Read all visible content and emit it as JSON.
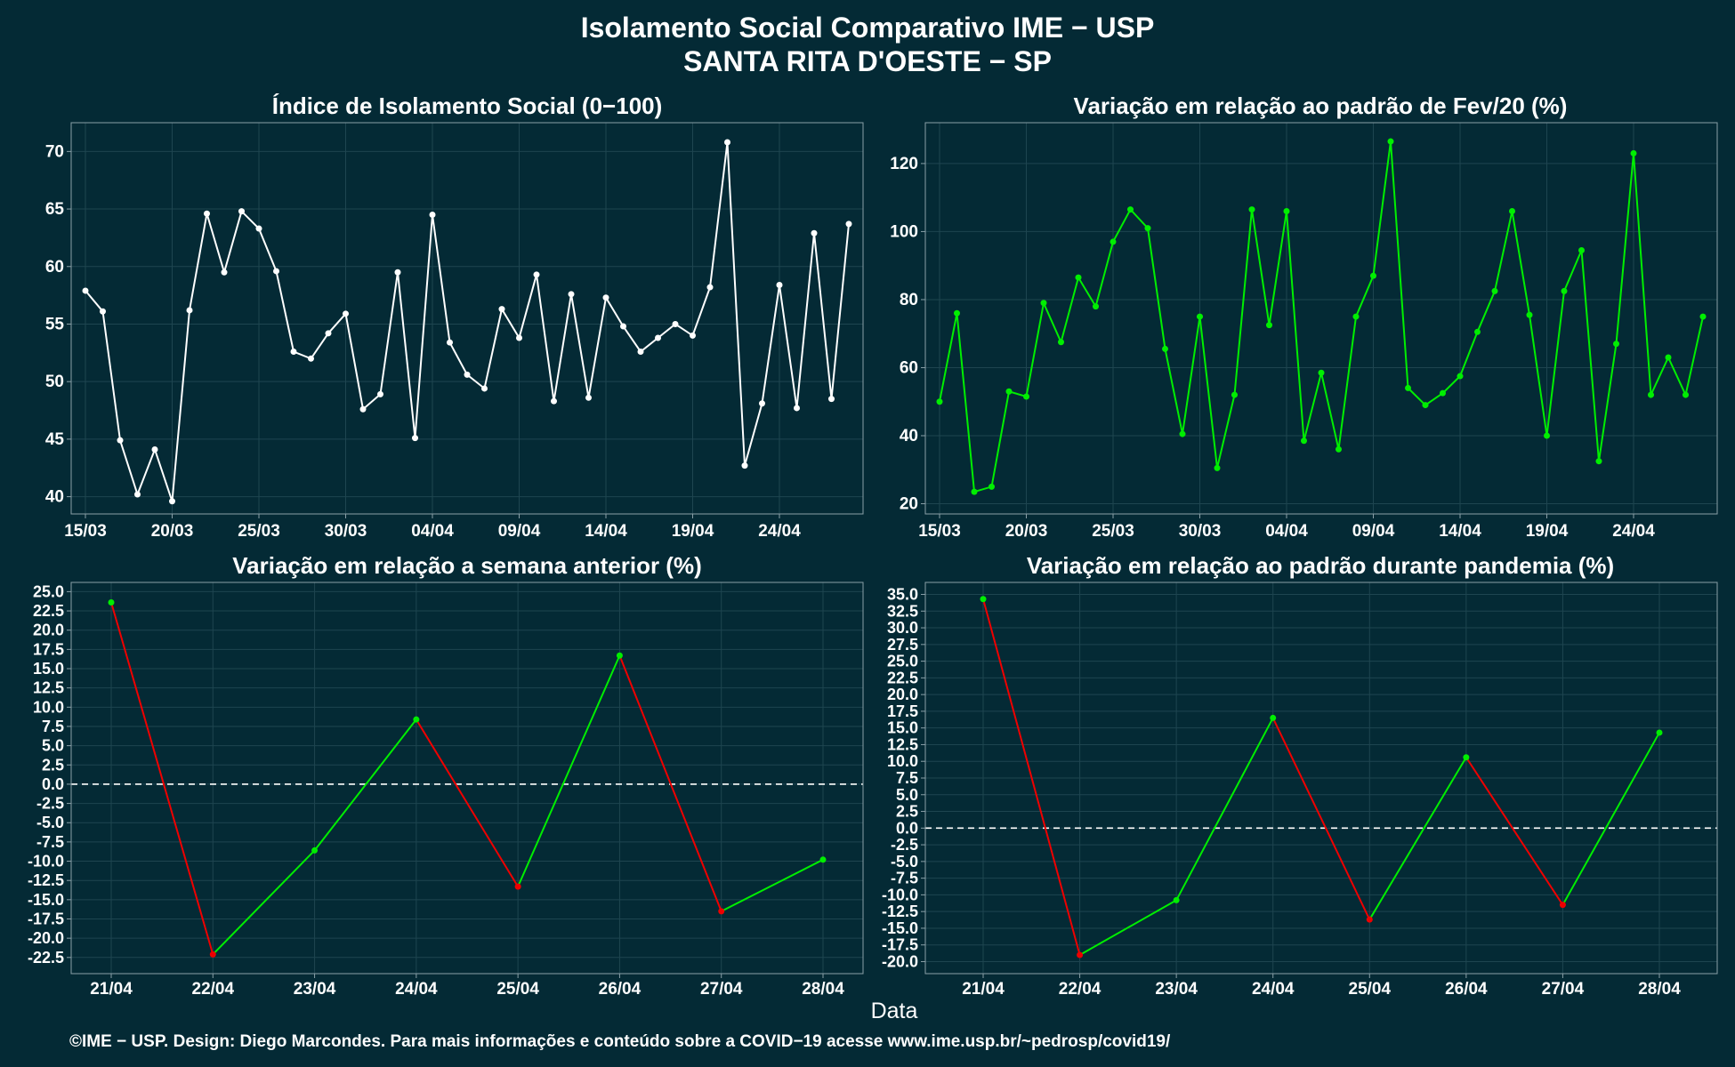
{
  "figure": {
    "title_line1": "Isolamento Social Comparativo IME − USP",
    "title_line2": "SANTA RITA D'OESTE − SP",
    "xlabel": "Data",
    "footer": "©IME − USP. Design: Diego Marcondes. Para mais informações e conteúdo sobre a COVID−19 acesse www.ime.usp.br/~pedrosp/covid19/",
    "colors": {
      "background": "#042a35",
      "panel": "#042a35",
      "white_line": "#ffffff",
      "green": "#00ee00",
      "red": "#ee0000",
      "grid": "#1e4550",
      "frame": "#8aa0a8"
    }
  },
  "chart_data": [
    {
      "type": "line",
      "title": "Índice de Isolamento Social (0−100)",
      "color": "#ffffff",
      "x": [
        "15/03",
        "16/03",
        "17/03",
        "18/03",
        "19/03",
        "20/03",
        "21/03",
        "22/03",
        "23/03",
        "24/03",
        "25/03",
        "26/03",
        "27/03",
        "28/03",
        "29/03",
        "30/03",
        "31/03",
        "01/04",
        "02/04",
        "03/04",
        "04/04",
        "05/04",
        "06/04",
        "07/04",
        "08/04",
        "09/04",
        "10/04",
        "11/04",
        "12/04",
        "13/04",
        "14/04",
        "15/04",
        "16/04",
        "17/04",
        "18/04",
        "19/04",
        "20/04",
        "21/04",
        "22/04",
        "23/04",
        "24/04",
        "25/04",
        "26/04",
        "27/04",
        "28/04"
      ],
      "values": [
        57.9,
        56.1,
        44.9,
        40.2,
        44.1,
        39.6,
        56.2,
        64.6,
        59.5,
        64.8,
        63.3,
        59.6,
        52.6,
        52.0,
        54.2,
        55.9,
        47.6,
        48.9,
        59.5,
        45.1,
        64.5,
        53.4,
        50.6,
        49.4,
        56.3,
        53.8,
        59.3,
        48.3,
        57.6,
        48.6,
        57.3,
        54.8,
        52.6,
        53.8,
        55.0,
        54.0,
        58.2,
        70.8,
        42.7,
        48.1,
        58.4,
        47.7,
        62.9,
        48.5,
        63.7
      ],
      "xticks": [
        "15/03",
        "20/03",
        "25/03",
        "30/03",
        "04/04",
        "09/04",
        "14/04",
        "19/04",
        "24/04"
      ],
      "ylim": [
        38.5,
        72.5
      ],
      "yticks": [
        40,
        45,
        50,
        55,
        60,
        65,
        70
      ]
    },
    {
      "type": "line",
      "title": "Variação em relação ao padrão de Fev/20 (%)",
      "color": "#00ee00",
      "x": [
        "15/03",
        "16/03",
        "17/03",
        "18/03",
        "19/03",
        "20/03",
        "21/03",
        "22/03",
        "23/03",
        "24/03",
        "25/03",
        "26/03",
        "27/03",
        "28/03",
        "29/03",
        "30/03",
        "31/03",
        "01/04",
        "02/04",
        "03/04",
        "04/04",
        "05/04",
        "06/04",
        "07/04",
        "08/04",
        "09/04",
        "10/04",
        "11/04",
        "12/04",
        "13/04",
        "14/04",
        "15/04",
        "16/04",
        "17/04",
        "18/04",
        "19/04",
        "20/04",
        "21/04",
        "22/04",
        "23/04",
        "24/04",
        "25/04",
        "26/04",
        "27/04",
        "28/04"
      ],
      "values": [
        50,
        76,
        23.5,
        25,
        53,
        51.5,
        79,
        67.5,
        86.5,
        78,
        97,
        106.5,
        101,
        65.5,
        40.5,
        75,
        30.5,
        52,
        106.5,
        72.5,
        106,
        38.5,
        58.5,
        36,
        75,
        87,
        126.5,
        54,
        49,
        52.5,
        57.5,
        70.5,
        82.5,
        106,
        75.5,
        40,
        82.5,
        94.5,
        32.5,
        67,
        123,
        52,
        63,
        52,
        75
      ],
      "xticks": [
        "15/03",
        "20/03",
        "25/03",
        "30/03",
        "04/04",
        "09/04",
        "14/04",
        "19/04",
        "24/04"
      ],
      "ylim": [
        17,
        132
      ],
      "yticks": [
        20,
        40,
        60,
        80,
        100,
        120
      ]
    },
    {
      "type": "line",
      "title": "Variação em relação a semana anterior (%)",
      "segment_colors": "green where rising, red where falling",
      "x": [
        "21/04",
        "22/04",
        "23/04",
        "24/04",
        "25/04",
        "26/04",
        "27/04",
        "28/04"
      ],
      "values": [
        23.6,
        -22.1,
        -8.6,
        8.4,
        -13.3,
        16.7,
        -16.5,
        -9.8
      ],
      "xticks": [
        "21/04",
        "22/04",
        "23/04",
        "24/04",
        "25/04",
        "26/04",
        "27/04",
        "28/04"
      ],
      "ylim": [
        -24.6,
        26.2
      ],
      "yticks": [
        -22.5,
        -20.0,
        -17.5,
        -15.0,
        -12.5,
        -10.0,
        -7.5,
        -5.0,
        -2.5,
        0.0,
        2.5,
        5.0,
        7.5,
        10.0,
        12.5,
        15.0,
        17.5,
        20.0,
        22.5,
        25.0
      ],
      "reference_line": 0
    },
    {
      "type": "line",
      "title": "Variação em relação ao padrão durante pandemia (%)",
      "segment_colors": "green where rising, red where falling",
      "x": [
        "21/04",
        "22/04",
        "23/04",
        "24/04",
        "25/04",
        "26/04",
        "27/04",
        "28/04"
      ],
      "values": [
        34.3,
        -19.0,
        -10.8,
        16.5,
        -13.7,
        10.6,
        -11.5,
        14.3
      ],
      "xticks": [
        "21/04",
        "22/04",
        "23/04",
        "24/04",
        "25/04",
        "26/04",
        "27/04",
        "28/04"
      ],
      "ylim": [
        -21.8,
        36.8
      ],
      "yticks": [
        -20.0,
        -17.5,
        -15.0,
        -12.5,
        -10.0,
        -7.5,
        -5.0,
        -2.5,
        0.0,
        2.5,
        5.0,
        7.5,
        10.0,
        12.5,
        15.0,
        17.5,
        20.0,
        22.5,
        25.0,
        27.5,
        30.0,
        32.5,
        35.0
      ],
      "reference_line": 0
    }
  ]
}
